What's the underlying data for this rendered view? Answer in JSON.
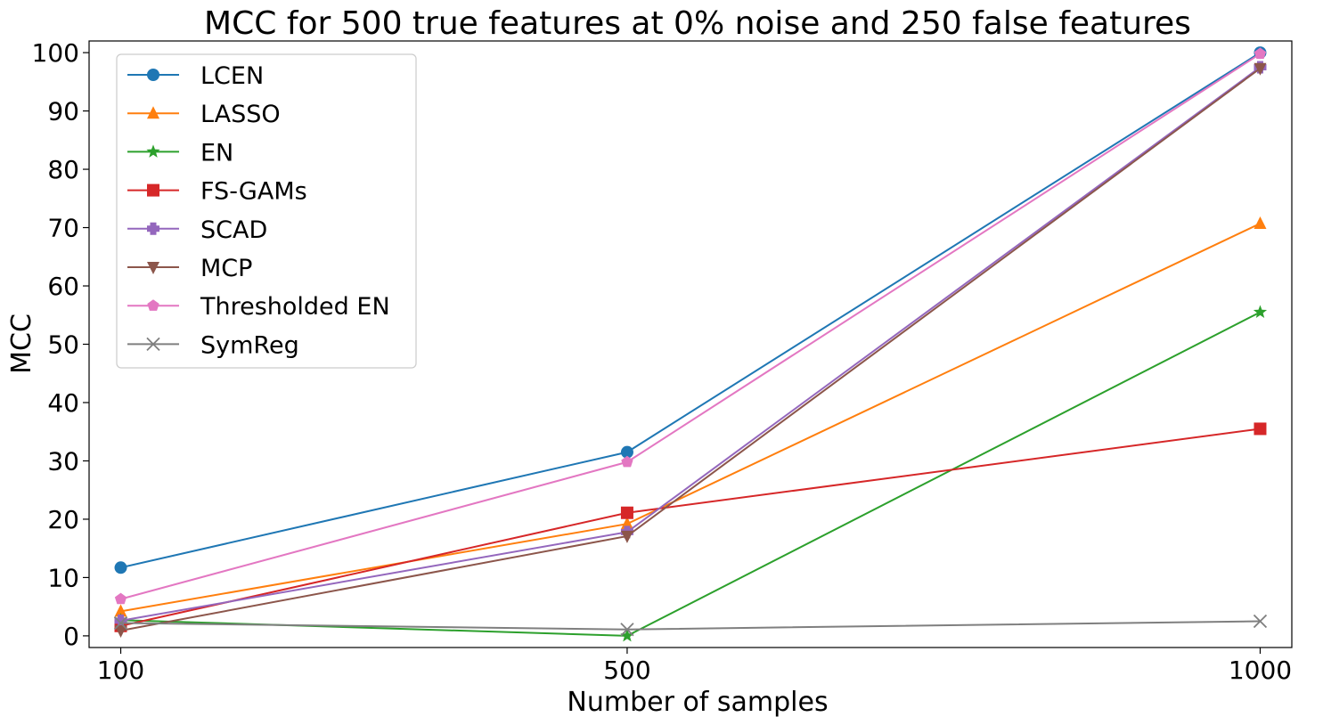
{
  "chart_data": {
    "type": "line",
    "title": "MCC for 500 true features at 0% noise and 250 false features",
    "xlabel": "Number of samples",
    "ylabel": "MCC",
    "x": [
      100,
      500,
      1000
    ],
    "x_tick_labels": [
      "100",
      "500",
      "1000"
    ],
    "ylim": [
      -2,
      102
    ],
    "y_ticks": [
      0,
      10,
      20,
      30,
      40,
      50,
      60,
      70,
      80,
      90,
      100
    ],
    "grid": false,
    "legend_position": "top-left",
    "series": [
      {
        "name": "LCEN",
        "values": [
          11.7,
          31.5,
          100.0
        ],
        "color": "#1f77b4",
        "marker": "circle"
      },
      {
        "name": "LASSO",
        "values": [
          4.2,
          19.2,
          70.7
        ],
        "color": "#ff7f0e",
        "marker": "triangle-up"
      },
      {
        "name": "EN",
        "values": [
          2.7,
          0.0,
          55.5
        ],
        "color": "#2ca02c",
        "marker": "star"
      },
      {
        "name": "FS-GAMs",
        "values": [
          1.7,
          21.1,
          35.5
        ],
        "color": "#d62728",
        "marker": "square"
      },
      {
        "name": "SCAD",
        "values": [
          2.6,
          17.8,
          97.5
        ],
        "color": "#9467bd",
        "marker": "plus"
      },
      {
        "name": "MCP",
        "values": [
          0.9,
          17.1,
          97.3
        ],
        "color": "#8c564b",
        "marker": "triangle-down"
      },
      {
        "name": "Thresholded EN",
        "values": [
          6.3,
          29.8,
          99.8
        ],
        "color": "#e377c2",
        "marker": "pentagon"
      },
      {
        "name": "SymReg",
        "values": [
          2.2,
          1.1,
          2.5
        ],
        "color": "#7f7f7f",
        "marker": "x"
      }
    ]
  }
}
